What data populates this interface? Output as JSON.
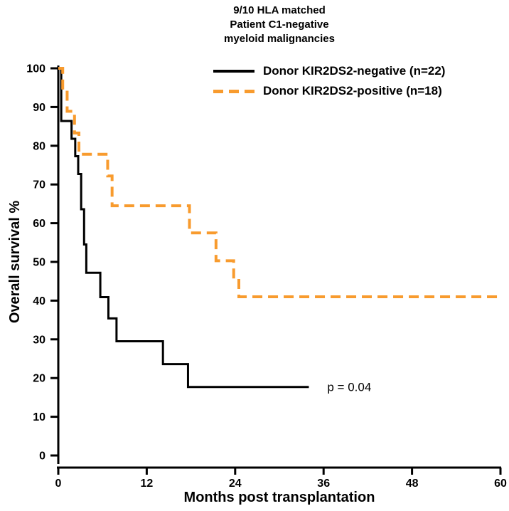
{
  "figure": {
    "title_lines": [
      "9/10 HLA matched",
      "Patient C1-negative",
      "myeloid malignancies"
    ]
  },
  "chart_data": {
    "type": "line",
    "subtype": "kaplan-meier-step-curve",
    "title": "9/10 HLA matched Patient C1-negative myeloid malignancies",
    "xlabel": "Months post transplantation",
    "ylabel": "Overall survival %",
    "xlim": [
      0,
      60
    ],
    "ylim": [
      0,
      100
    ],
    "x_ticks": [
      0,
      12,
      24,
      36,
      48,
      60
    ],
    "y_ticks": [
      0,
      10,
      20,
      30,
      40,
      50,
      60,
      70,
      80,
      90,
      100
    ],
    "grid": false,
    "legend_position": "top-right-inside",
    "axis_color": "#000000",
    "annotation": {
      "text": "p = 0.04",
      "x": 36.5,
      "y": 17.7
    },
    "series": [
      {
        "name": "Donor KIR2DS2-negative (n=22)",
        "color": "#000000",
        "line_style": "solid",
        "points": [
          [
            0,
            100
          ],
          [
            0.4,
            86.4
          ],
          [
            1.8,
            81.8
          ],
          [
            2.3,
            77.3
          ],
          [
            2.7,
            72.7
          ],
          [
            3.1,
            63.6
          ],
          [
            3.5,
            54.5
          ],
          [
            3.8,
            47.2
          ],
          [
            5.7,
            40.9
          ],
          [
            6.8,
            35.4
          ],
          [
            7.9,
            29.5
          ],
          [
            14.2,
            23.6
          ],
          [
            17.6,
            17.7
          ]
        ],
        "end_x": 34
      },
      {
        "name": "Donor KIR2DS2-positive (n=18)",
        "color": "#F89B2E",
        "line_style": "dashed",
        "points": [
          [
            0,
            100
          ],
          [
            0.6,
            94.4
          ],
          [
            1.2,
            88.9
          ],
          [
            2.2,
            83.3
          ],
          [
            2.8,
            77.8
          ],
          [
            6.7,
            72.2
          ],
          [
            7.3,
            64.5
          ],
          [
            17.8,
            57.5
          ],
          [
            21.4,
            50.3
          ],
          [
            23.8,
            45.7
          ],
          [
            24.5,
            41
          ]
        ],
        "end_x": 60
      }
    ]
  }
}
